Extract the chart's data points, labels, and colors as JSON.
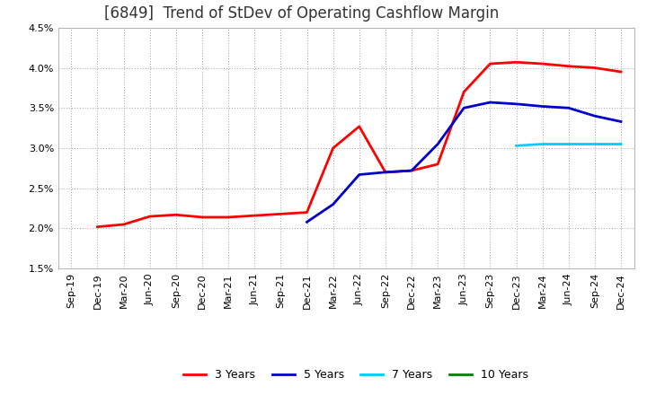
{
  "title": "[6849]  Trend of StDev of Operating Cashflow Margin",
  "ylim": [
    0.015,
    0.045
  ],
  "yticks": [
    0.015,
    0.02,
    0.025,
    0.03,
    0.035,
    0.04,
    0.045
  ],
  "ytick_labels": [
    "1.5%",
    "2.0%",
    "2.5%",
    "3.0%",
    "3.5%",
    "4.0%",
    "4.5%"
  ],
  "background_color": "#ffffff",
  "plot_bg_color": "#ffffff",
  "grid_color": "#888888",
  "series": {
    "3yr": {
      "color": "#ff0000",
      "label": "3 Years",
      "x": [
        "Sep-19",
        "Dec-19",
        "Mar-20",
        "Jun-20",
        "Sep-20",
        "Dec-20",
        "Mar-21",
        "Jun-21",
        "Sep-21",
        "Dec-21",
        "Mar-22",
        "Jun-22",
        "Sep-22",
        "Dec-22",
        "Mar-23",
        "Jun-23",
        "Sep-23",
        "Dec-23",
        "Mar-24",
        "Jun-24",
        "Sep-24",
        "Dec-24"
      ],
      "y": [
        null,
        0.0202,
        0.0205,
        0.0215,
        0.0217,
        0.0214,
        0.0214,
        0.0216,
        0.0218,
        0.022,
        0.03,
        0.0327,
        0.027,
        0.0272,
        0.028,
        0.037,
        0.0405,
        0.0407,
        0.0405,
        0.0402,
        0.04,
        0.0395
      ]
    },
    "5yr": {
      "color": "#0000cc",
      "label": "5 Years",
      "x": [
        "Dec-21",
        "Mar-22",
        "Jun-22",
        "Sep-22",
        "Dec-22",
        "Mar-23",
        "Jun-23",
        "Sep-23",
        "Dec-23",
        "Mar-24",
        "Jun-24",
        "Sep-24",
        "Dec-24"
      ],
      "y": [
        0.0208,
        0.023,
        0.0267,
        0.027,
        0.0272,
        0.0305,
        0.035,
        0.0357,
        0.0355,
        0.0352,
        0.035,
        0.034,
        0.0333
      ]
    },
    "7yr": {
      "color": "#00ccff",
      "label": "7 Years",
      "x": [
        "Dec-23",
        "Mar-24",
        "Jun-24",
        "Sep-24",
        "Dec-24"
      ],
      "y": [
        0.0303,
        0.0305,
        0.0305,
        0.0305,
        0.0305
      ]
    },
    "10yr": {
      "color": "#008000",
      "label": "10 Years",
      "x": [],
      "y": []
    }
  },
  "xtick_labels": [
    "Sep-19",
    "Dec-19",
    "Mar-20",
    "Jun-20",
    "Sep-20",
    "Dec-20",
    "Mar-21",
    "Jun-21",
    "Sep-21",
    "Dec-21",
    "Mar-22",
    "Jun-22",
    "Sep-22",
    "Dec-22",
    "Mar-23",
    "Jun-23",
    "Sep-23",
    "Dec-23",
    "Mar-24",
    "Jun-24",
    "Sep-24",
    "Dec-24"
  ],
  "title_fontsize": 12,
  "title_color": "#333333",
  "axis_fontsize": 8,
  "legend_fontsize": 9,
  "line_width": 2.0
}
